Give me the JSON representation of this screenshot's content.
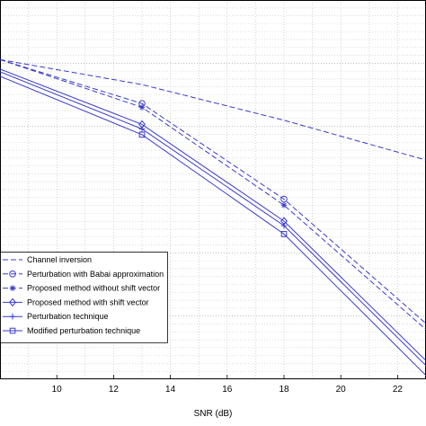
{
  "chart_data": {
    "type": "line",
    "title": "",
    "xlabel": "SNR (dB)",
    "ylabel": "",
    "xlim": [
      8,
      23
    ],
    "ylim": [
      0,
      1
    ],
    "grid": true,
    "legend_position": "bottom-left",
    "x_ticks": [
      10,
      12,
      14,
      16,
      18,
      20,
      22
    ],
    "series": [
      {
        "name": "Channel inversion",
        "color": "#3a3acc",
        "line": "dashed",
        "marker": "none",
        "x": [
          8,
          13,
          18,
          23
        ],
        "y": [
          0.843,
          0.777,
          0.683,
          0.578
        ]
      },
      {
        "name": "Perturbation with Babai approximation",
        "color": "#3a3acc",
        "line": "dashed",
        "marker": "circle",
        "marker_x": [
          13,
          18
        ],
        "x": [
          8,
          13,
          18,
          23
        ],
        "y": [
          0.843,
          0.727,
          0.475,
          0.147
        ]
      },
      {
        "name": "Proposed method without shift vector",
        "color": "#3a3acc",
        "line": "dashed",
        "marker": "star",
        "marker_x": [
          13,
          18
        ],
        "x": [
          8,
          13,
          18,
          23
        ],
        "y": [
          0.843,
          0.717,
          0.459,
          0.131
        ]
      },
      {
        "name": "Proposed method with shift vector",
        "color": "#3a3acc",
        "line": "solid",
        "marker": "diamond",
        "marker_x": [
          13,
          18
        ],
        "x": [
          8,
          13,
          18,
          23
        ],
        "y": [
          0.818,
          0.672,
          0.417,
          0.049
        ]
      },
      {
        "name": "Perturbation technique",
        "color": "#3a3acc",
        "line": "solid",
        "marker": "plus",
        "marker_x": [
          13,
          18
        ],
        "x": [
          8,
          13,
          18,
          23
        ],
        "y": [
          0.811,
          0.66,
          0.405,
          0.036
        ]
      },
      {
        "name": "Modified perturbation technique",
        "color": "#3a3acc",
        "line": "solid",
        "marker": "square",
        "marker_x": [
          13,
          18
        ],
        "x": [
          8,
          13,
          18,
          23
        ],
        "y": [
          0.799,
          0.645,
          0.383,
          0.01
        ]
      }
    ]
  }
}
